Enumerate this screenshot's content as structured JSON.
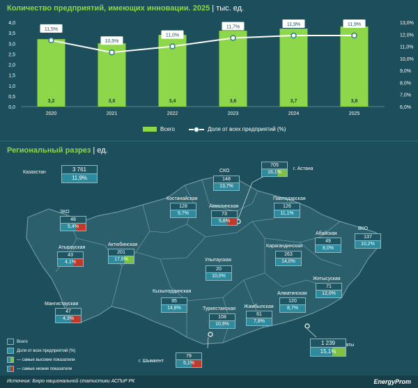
{
  "header": {
    "title": "Количество предприятий, имеющих инновации. 2025",
    "unit": "тыс. ед."
  },
  "chart_data": {
    "type": "bar",
    "categories": [
      "2020",
      "2021",
      "2022",
      "2023",
      "2024",
      "2025"
    ],
    "series": [
      {
        "name": "Всего",
        "type": "bar",
        "values": [
          3.2,
          3.0,
          3.4,
          3.6,
          3.7,
          3.8
        ],
        "labels": [
          "3,2",
          "3,0",
          "3,4",
          "3,6",
          "3,7",
          "3,8"
        ]
      },
      {
        "name": "Доля от всех предприятий (%)",
        "type": "line",
        "axis": "right",
        "values": [
          11.5,
          10.5,
          11.0,
          11.7,
          11.9,
          11.9
        ],
        "labels": [
          "11,5%",
          "10,5%",
          "11,0%",
          "11,7%",
          "11,9%",
          "11,9%"
        ]
      }
    ],
    "ylim": [
      0,
      4.0
    ],
    "y_ticks": [
      "0,0",
      "0,5",
      "1,0",
      "1,5",
      "2,0",
      "2,5",
      "3,0",
      "3,5",
      "4,0"
    ],
    "y2lim": [
      6.0,
      13.0
    ],
    "y2_ticks": [
      "6,0%",
      "7,0%",
      "8,0%",
      "9,0%",
      "10,0%",
      "11,0%",
      "12,0%",
      "13,0%"
    ],
    "legend_position": "bottom",
    "colors": {
      "bar": "#8ed64a",
      "line": "#ffffff",
      "marker_edge": "#2e7a8a"
    }
  },
  "legend": {
    "bar_label": "Всего",
    "line_label": "Доля от всех предприятий (%)"
  },
  "regional": {
    "title": "Региональный разрез",
    "unit": "ед.",
    "regions": [
      {
        "name": "Казахстан",
        "value": "3 761",
        "share": "11,9%",
        "mark": ""
      },
      {
        "name": "г. Астана",
        "value": "705",
        "share": "16,1%",
        "mark": "high"
      },
      {
        "name": "СКО",
        "value": "148",
        "share": "13,7%",
        "mark": ""
      },
      {
        "name": "Костанайская",
        "value": "128",
        "share": "9,7%",
        "mark": ""
      },
      {
        "name": "Акмолинская",
        "value": "73",
        "share": "5,8%",
        "mark": "low"
      },
      {
        "name": "Павлодарская",
        "value": "126",
        "share": "11,1%",
        "mark": ""
      },
      {
        "name": "ЗКО",
        "value": "48",
        "share": "5,4%",
        "mark": "low"
      },
      {
        "name": "Атырауская",
        "value": "43",
        "share": "4,1%",
        "mark": "low"
      },
      {
        "name": "Актюбинская",
        "value": "201",
        "share": "17,6%",
        "mark": "high"
      },
      {
        "name": "Абайская",
        "value": "49",
        "share": "8,0%",
        "mark": ""
      },
      {
        "name": "ВКО",
        "value": "137",
        "share": "10,2%",
        "mark": ""
      },
      {
        "name": "Карагандинская",
        "value": "263",
        "share": "14,0%",
        "mark": ""
      },
      {
        "name": "Улытауская",
        "value": "20",
        "share": "10,0%",
        "mark": ""
      },
      {
        "name": "Мангистауская",
        "value": "47",
        "share": "4,3%",
        "mark": "low"
      },
      {
        "name": "Кызылординская",
        "value": "95",
        "share": "14,8%",
        "mark": ""
      },
      {
        "name": "Жетысуская",
        "value": "71",
        "share": "12,0%",
        "mark": ""
      },
      {
        "name": "Алматинская",
        "value": "120",
        "share": "8,7%",
        "mark": ""
      },
      {
        "name": "Туркестанская",
        "value": "108",
        "share": "10,9%",
        "mark": ""
      },
      {
        "name": "Жамбылская",
        "value": "61",
        "share": "7,8%",
        "mark": ""
      },
      {
        "name": "г. Алматы",
        "value": "1 239",
        "share": "15,1%",
        "mark": "high"
      },
      {
        "name": "г. Шымкент",
        "value": "79",
        "share": "5,1%",
        "mark": "low"
      }
    ]
  },
  "map_legend": {
    "total": "Всего",
    "share": "Доля от всех предприятий (%)",
    "high": "— самые высокие показатели",
    "low": "— самые низкие показатели"
  },
  "footer": {
    "source": "Источник: Бюро национальной статистики АСПиР РК",
    "brand": "EnergyProm"
  }
}
